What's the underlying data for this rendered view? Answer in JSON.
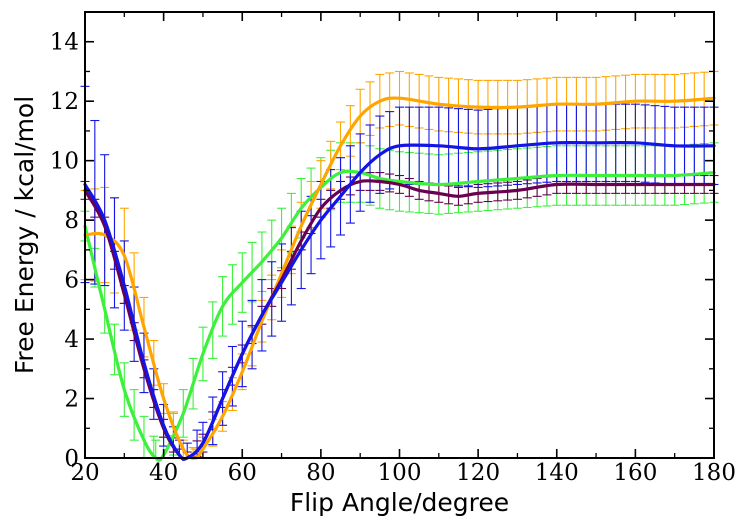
{
  "chart_data": {
    "type": "line",
    "title": "",
    "xlabel": "Flip Angle/degree",
    "ylabel": "Free Energy / kcal/mol",
    "xlim": [
      20,
      180
    ],
    "ylim": [
      0,
      15
    ],
    "x_ticks": [
      20,
      40,
      60,
      80,
      100,
      120,
      140,
      160,
      180
    ],
    "y_ticks": [
      0,
      2,
      4,
      6,
      8,
      10,
      12,
      14
    ],
    "grid": false,
    "legend": "none",
    "error_bars": true,
    "series": [
      {
        "color": "#3cf03c",
        "x": [
          20,
          25,
          30,
          35,
          38,
          40,
          45,
          50,
          55,
          60,
          65,
          70,
          75,
          80,
          85,
          90,
          95,
          100,
          110,
          120,
          130,
          140,
          150,
          160,
          170,
          180
        ],
        "y": [
          7.8,
          5.0,
          2.3,
          0.6,
          0.0,
          0.1,
          1.5,
          3.5,
          5.1,
          5.9,
          6.6,
          7.4,
          8.4,
          9.1,
          9.6,
          9.6,
          9.4,
          9.3,
          9.2,
          9.3,
          9.4,
          9.5,
          9.5,
          9.5,
          9.5,
          9.6
        ],
        "err": [
          0.5,
          0.8,
          0.9,
          0.8,
          0.6,
          0.6,
          0.8,
          0.9,
          1.0,
          1.0,
          1.0,
          1.0,
          1.0,
          1.0,
          1.0,
          1.0,
          1.0,
          1.0,
          1.0,
          1.0,
          1.0,
          1.0,
          1.0,
          1.0,
          1.0,
          1.0
        ]
      },
      {
        "color": "#ffa500",
        "x": [
          20,
          25,
          30,
          35,
          40,
          45,
          48,
          50,
          55,
          60,
          65,
          70,
          75,
          80,
          85,
          90,
          95,
          100,
          110,
          120,
          130,
          140,
          150,
          160,
          170,
          180
        ],
        "y": [
          7.5,
          7.5,
          6.8,
          4.4,
          2.0,
          0.3,
          0.0,
          0.3,
          1.4,
          2.9,
          4.6,
          6.2,
          7.8,
          9.2,
          10.5,
          11.5,
          12.0,
          12.1,
          11.9,
          11.8,
          11.8,
          11.9,
          11.9,
          12.0,
          12.0,
          12.1
        ],
        "err": [
          1.5,
          1.6,
          1.6,
          1.0,
          0.5,
          0.3,
          0.3,
          0.4,
          0.5,
          0.6,
          0.7,
          0.8,
          0.8,
          0.8,
          0.8,
          0.9,
          0.9,
          0.9,
          0.9,
          0.9,
          0.9,
          0.9,
          0.9,
          0.9,
          0.9,
          0.9
        ]
      },
      {
        "color": "#6a0050",
        "x": [
          20,
          25,
          30,
          35,
          40,
          44,
          46,
          50,
          55,
          60,
          65,
          70,
          75,
          80,
          85,
          90,
          95,
          100,
          105,
          110,
          115,
          120,
          130,
          140,
          150,
          160,
          170,
          180
        ],
        "y": [
          9.0,
          7.8,
          5.5,
          3.0,
          1.0,
          0.1,
          0.0,
          0.5,
          2.0,
          3.5,
          4.8,
          6.0,
          7.3,
          8.4,
          9.0,
          9.3,
          9.3,
          9.2,
          9.0,
          8.9,
          8.8,
          8.9,
          9.0,
          9.2,
          9.2,
          9.2,
          9.2,
          9.2
        ],
        "err": [
          0.3,
          0.3,
          0.3,
          0.3,
          0.3,
          0.2,
          0.2,
          0.3,
          0.3,
          0.3,
          0.3,
          0.3,
          0.3,
          0.3,
          0.3,
          0.3,
          0.3,
          0.3,
          0.3,
          0.3,
          0.3,
          0.3,
          0.3,
          0.3,
          0.3,
          0.3,
          0.3,
          0.3
        ]
      },
      {
        "color": "#1414e6",
        "x": [
          20,
          25,
          30,
          35,
          40,
          44,
          46,
          50,
          55,
          60,
          65,
          70,
          75,
          80,
          85,
          90,
          95,
          100,
          110,
          120,
          130,
          140,
          150,
          160,
          170,
          180
        ],
        "y": [
          9.2,
          8.0,
          5.8,
          3.2,
          1.1,
          0.1,
          0.0,
          0.5,
          2.0,
          3.5,
          4.8,
          5.9,
          7.0,
          8.0,
          8.8,
          9.6,
          10.2,
          10.5,
          10.5,
          10.4,
          10.5,
          10.6,
          10.6,
          10.6,
          10.5,
          10.5
        ],
        "err": [
          3.3,
          2.2,
          1.5,
          1.0,
          0.7,
          0.5,
          0.5,
          0.7,
          0.9,
          1.1,
          1.2,
          1.3,
          1.3,
          1.3,
          1.3,
          1.3,
          1.3,
          1.3,
          1.3,
          1.3,
          1.3,
          1.3,
          1.3,
          1.3,
          1.3,
          1.3
        ]
      }
    ]
  }
}
